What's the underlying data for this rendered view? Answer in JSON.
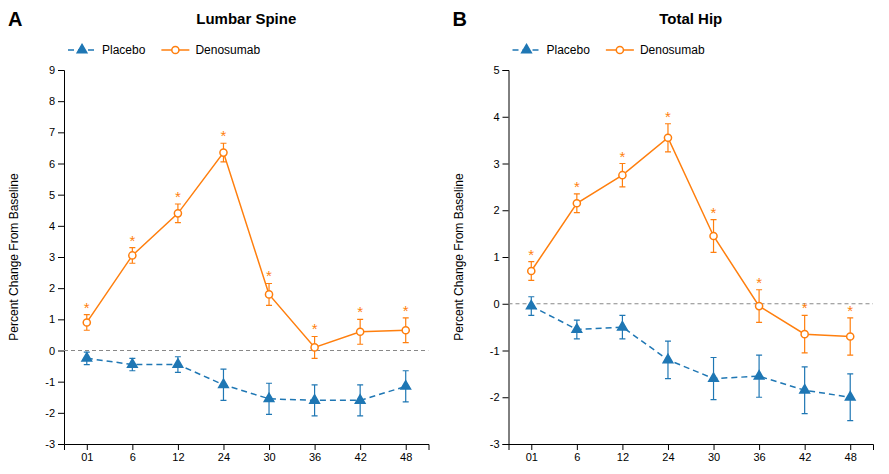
{
  "chart_data": [
    {
      "type": "line",
      "panel_label": "A",
      "title": "Lumbar Spine",
      "y_label": "Percent Change From Baseline",
      "categories": [
        "01",
        "6",
        "12",
        "24",
        "30",
        "36",
        "42",
        "48"
      ],
      "ylim": [
        -3,
        9
      ],
      "yticks": [
        -3,
        -2,
        -1,
        0,
        1,
        2,
        3,
        4,
        5,
        6,
        7,
        8,
        9
      ],
      "grid": false,
      "legend": "upper left",
      "baseline": 0,
      "series": [
        {
          "name": "Placebo",
          "marker": "triangle",
          "line_style": "dashed",
          "values": [
            -0.25,
            -0.45,
            -0.45,
            -1.1,
            -1.55,
            -1.6,
            -1.6,
            -1.15
          ],
          "errors": [
            0.2,
            0.2,
            0.25,
            0.5,
            0.5,
            0.5,
            0.5,
            0.5
          ]
        },
        {
          "name": "Denosumab",
          "marker": "circle-open",
          "line_style": "solid",
          "values": [
            0.9,
            3.05,
            4.4,
            6.35,
            1.8,
            0.1,
            0.6,
            0.65
          ],
          "errors": [
            0.25,
            0.25,
            0.3,
            0.3,
            0.35,
            0.35,
            0.4,
            0.4
          ],
          "star_labels": [
            "*",
            "*",
            "*",
            "*",
            "*",
            "*",
            "*",
            "*"
          ]
        }
      ]
    },
    {
      "type": "line",
      "panel_label": "B",
      "title": "Total Hip",
      "y_label": "Percent Change From Baseline",
      "categories": [
        "01",
        "6",
        "12",
        "24",
        "30",
        "36",
        "42",
        "48"
      ],
      "ylim": [
        -3,
        5
      ],
      "yticks": [
        -3,
        -2,
        -1,
        0,
        1,
        2,
        3,
        4,
        5
      ],
      "grid": false,
      "legend": "upper left",
      "baseline": 0,
      "series": [
        {
          "name": "Placebo",
          "marker": "triangle",
          "line_style": "dashed",
          "values": [
            -0.05,
            -0.55,
            -0.5,
            -1.2,
            -1.6,
            -1.55,
            -1.85,
            -2.0
          ],
          "errors": [
            0.2,
            0.2,
            0.25,
            0.4,
            0.45,
            0.45,
            0.5,
            0.5
          ]
        },
        {
          "name": "Denosumab",
          "marker": "circle-open",
          "line_style": "solid",
          "values": [
            0.7,
            2.15,
            2.75,
            3.55,
            1.45,
            -0.05,
            -0.65,
            -0.7
          ],
          "errors": [
            0.2,
            0.2,
            0.25,
            0.3,
            0.35,
            0.35,
            0.4,
            0.4
          ],
          "star_labels": [
            "*",
            "*",
            "*",
            "*",
            "*",
            "*",
            "*",
            "*"
          ]
        }
      ]
    }
  ]
}
